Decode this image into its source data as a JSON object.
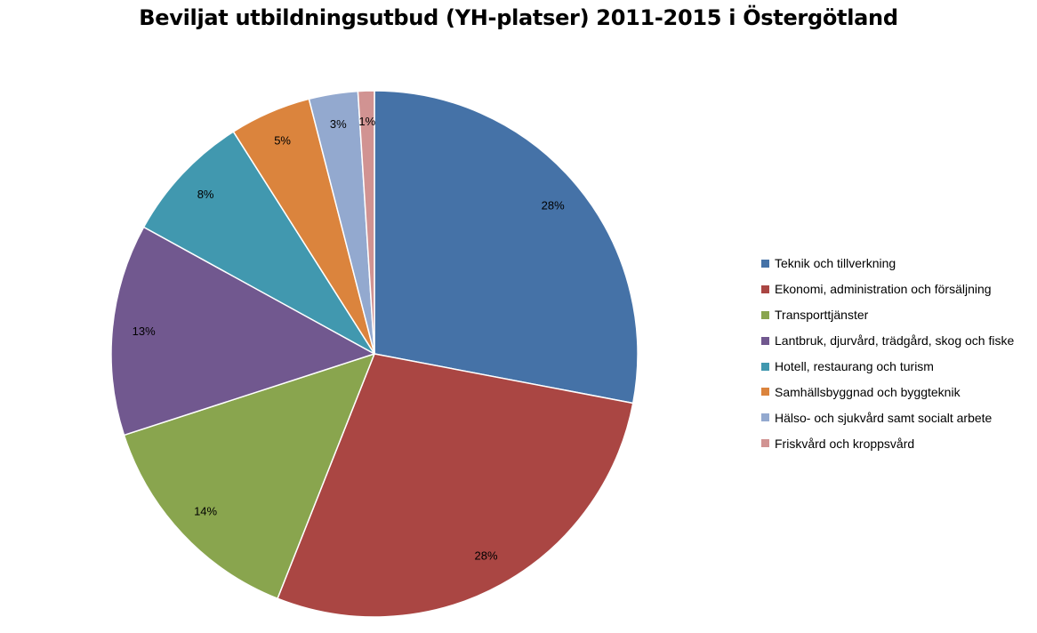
{
  "chart_data": {
    "type": "pie",
    "title": "Beviljat utbildningsutbud (YH-platser) 2011-2015 i Östergötland",
    "legend_position": "right",
    "slices": [
      {
        "label": "Teknik och tillverkning",
        "value": 28,
        "display": "28%",
        "color": "#4572A7"
      },
      {
        "label": "Ekonomi, administration och försäljning",
        "value": 28,
        "display": "28%",
        "color": "#AA4643"
      },
      {
        "label": "Transporttjänster",
        "value": 14,
        "display": "14%",
        "color": "#89A54E"
      },
      {
        "label": "Lantbruk, djurvård, trädgård, skog och fiske",
        "value": 13,
        "display": "13%",
        "color": "#71588F"
      },
      {
        "label": "Hotell, restaurang och turism",
        "value": 8,
        "display": "8%",
        "color": "#4198AF"
      },
      {
        "label": "Samhällsbyggnad och byggteknik",
        "value": 5,
        "display": "5%",
        "color": "#DB843D"
      },
      {
        "label": "Hälso- och sjukvård samt socialt arbete",
        "value": 3,
        "display": "3%",
        "color": "#93A9CF"
      },
      {
        "label": "Friskvård och kroppsvård",
        "value": 1,
        "display": "1%",
        "color": "#D19392"
      }
    ]
  }
}
